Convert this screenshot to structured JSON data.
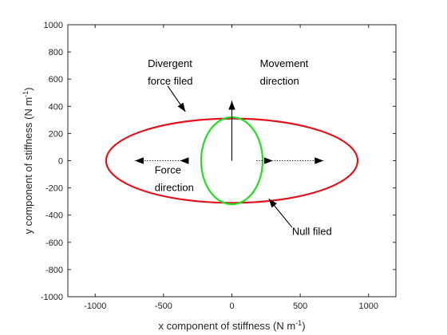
{
  "chart_data": {
    "type": "line",
    "title": "",
    "xlabel": "x component of stiffness (N m",
    "xlabel_sup": "-1",
    "xlabel_close": ")",
    "ylabel": "y component of stiffness (N m",
    "ylabel_sup": "-1",
    "ylabel_close": ")",
    "xlim": [
      -1200,
      1200
    ],
    "ylim": [
      -1000,
      1000
    ],
    "xticks": [
      -1000,
      -500,
      0,
      500,
      1000
    ],
    "yticks": [
      -1000,
      -800,
      -600,
      -400,
      -200,
      0,
      200,
      400,
      600,
      800,
      1000
    ],
    "grid": false,
    "series": [
      {
        "name": "",
        "kind": "ellipse",
        "center": [
          0,
          0
        ],
        "rx": 920,
        "ry": 310,
        "color": "#e0141e"
      },
      {
        "name": "",
        "kind": "ellipse",
        "center": [
          0,
          0
        ],
        "rx": 225,
        "ry": 320,
        "color": "#22dd22"
      }
    ],
    "arrows": [
      {
        "from": [
          0,
          0
        ],
        "to": [
          0,
          440
        ],
        "style": "solid"
      },
      {
        "from": [
          -370,
          0
        ],
        "to": [
          -710,
          0
        ],
        "style": "dotted"
      },
      {
        "from": [
          -370,
          0
        ],
        "to": [
          -380,
          0
        ],
        "style": "dotted-head"
      },
      {
        "from": [
          180,
          0
        ],
        "to": [
          670,
          0
        ],
        "style": "dotted"
      },
      {
        "from": [
          180,
          0
        ],
        "to": [
          300,
          0
        ],
        "style": "dotted-head"
      },
      {
        "from": [
          -470,
          550
        ],
        "to": [
          -340,
          360
        ],
        "style": "solid"
      },
      {
        "from": [
          440,
          -490
        ],
        "to": [
          270,
          -280
        ],
        "style": "solid"
      }
    ],
    "annotations": [
      {
        "lines": [
          "Divergent",
          "force filed"
        ],
        "at": [
          -615,
          690
        ]
      },
      {
        "lines": [
          "Movement",
          "direction"
        ],
        "at": [
          205,
          690
        ]
      },
      {
        "lines": [
          "Force",
          "direction"
        ],
        "at": [
          -565,
          -95
        ]
      },
      {
        "lines": [
          "Null filed"
        ],
        "at": [
          440,
          -545
        ]
      }
    ]
  }
}
